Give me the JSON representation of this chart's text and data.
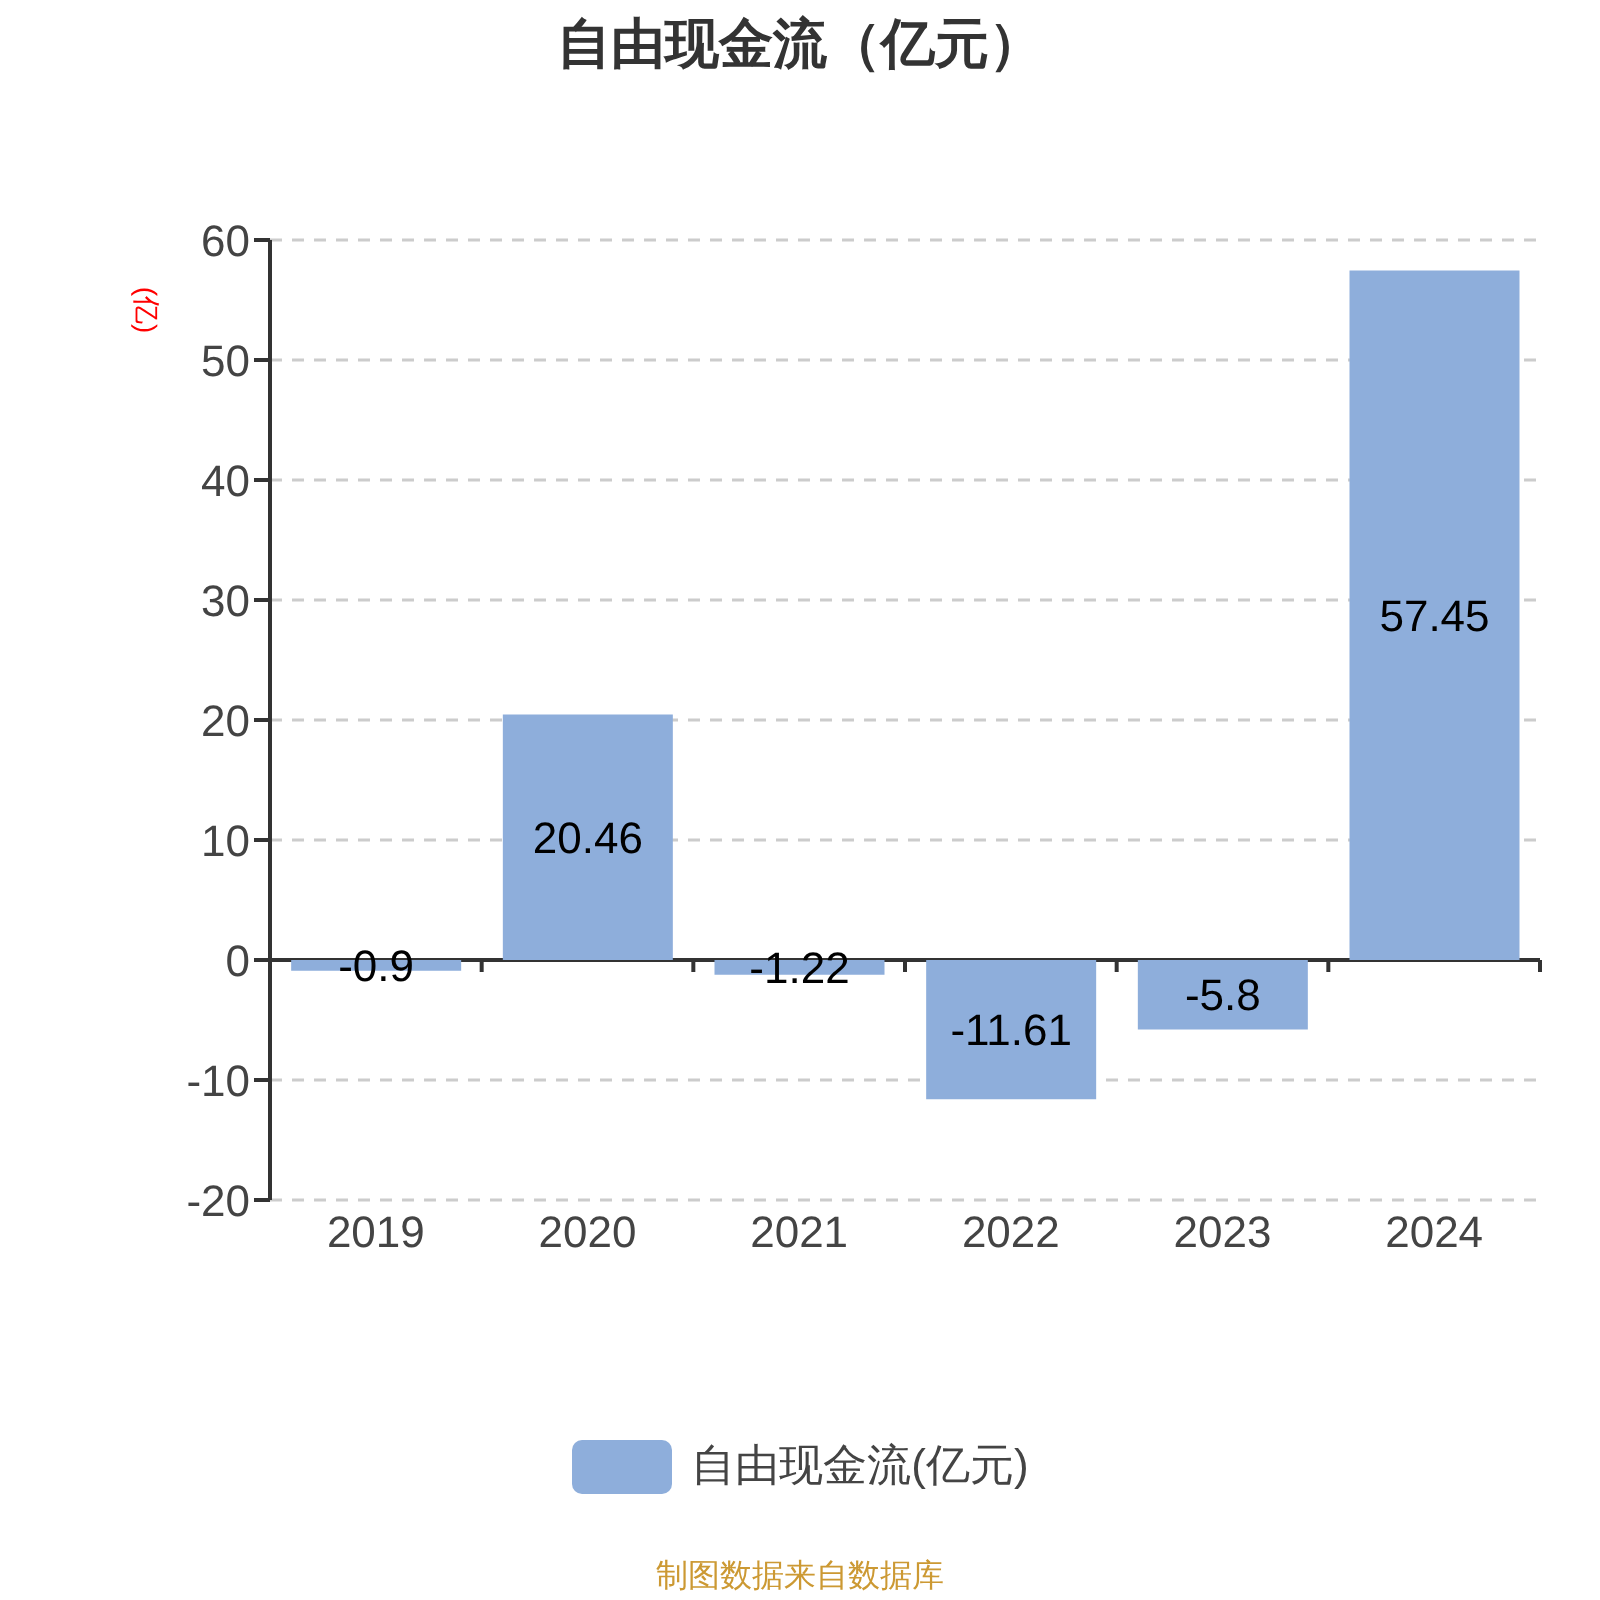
{
  "chart_data": {
    "type": "bar",
    "title": "自由现金流（亿元）",
    "ylabel": "(亿)",
    "categories": [
      "2019",
      "2020",
      "2021",
      "2022",
      "2023",
      "2024"
    ],
    "series": [
      {
        "name": "自由现金流(亿元)",
        "color": "#8eaedb",
        "values": [
          -0.9,
          20.46,
          -1.22,
          -11.61,
          -5.8,
          57.45
        ]
      }
    ],
    "ylim": [
      -20,
      60
    ],
    "yticks": [
      -20,
      -10,
      0,
      10,
      20,
      30,
      40,
      50,
      60
    ],
    "grid": "y",
    "legend": "bottom",
    "data_labels": true,
    "annotations": [
      "制图数据来自数据库"
    ]
  }
}
